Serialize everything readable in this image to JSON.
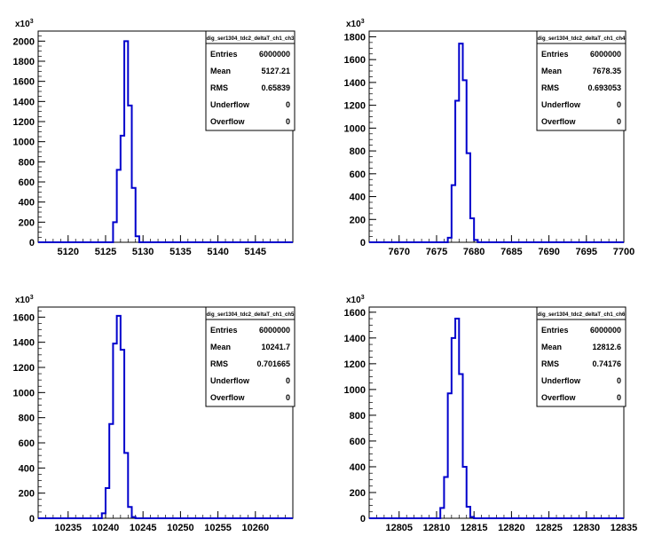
{
  "colors": {
    "histogram": "#0000cc",
    "axis": "#000000",
    "background": "#ffffff"
  },
  "chart_data": [
    {
      "type": "histogram",
      "title": "dig_ser1304_tdc2_deltaT_ch1_ch3",
      "y_exponent": {
        "base": "x10",
        "power": "3"
      },
      "xlim": [
        5116,
        5150
      ],
      "ylim": [
        0,
        2100
      ],
      "x_ticks": [
        5120,
        5125,
        5130,
        5135,
        5140,
        5145
      ],
      "y_ticks": [
        0,
        200,
        400,
        600,
        800,
        1000,
        1200,
        1400,
        1600,
        1800,
        2000
      ],
      "bin_width": 0.5,
      "bins_start": [
        5125.5,
        5126,
        5126.5,
        5127,
        5127.5,
        5128,
        5128.5,
        5129
      ],
      "values": [
        0,
        200,
        720,
        1060,
        2000,
        1360,
        540,
        60
      ],
      "stats": [
        {
          "label": "Entries",
          "value": "6000000"
        },
        {
          "label": "Mean",
          "value": "5127.21"
        },
        {
          "label": "RMS",
          "value": "0.65839"
        },
        {
          "label": "Underflow",
          "value": "0"
        },
        {
          "label": "Overflow",
          "value": "0"
        }
      ]
    },
    {
      "type": "histogram",
      "title": "dig_ser1304_tdc2_deltaT_ch1_ch4",
      "y_exponent": {
        "base": "x10",
        "power": "3"
      },
      "xlim": [
        7666,
        7700
      ],
      "ylim": [
        0,
        1850
      ],
      "x_ticks": [
        7670,
        7675,
        7680,
        7685,
        7690,
        7695,
        7700
      ],
      "y_ticks": [
        0,
        200,
        400,
        600,
        800,
        1000,
        1200,
        1400,
        1600,
        1800
      ],
      "bin_width": 0.5,
      "bins_start": [
        7676,
        7676.5,
        7677,
        7677.5,
        7678,
        7678.5,
        7679,
        7679.5,
        7680
      ],
      "values": [
        0,
        40,
        500,
        1240,
        1740,
        1420,
        780,
        210,
        20
      ],
      "stats": [
        {
          "label": "Entries",
          "value": "6000000"
        },
        {
          "label": "Mean",
          "value": "7678.35"
        },
        {
          "label": "RMS",
          "value": "0.693053"
        },
        {
          "label": "Underflow",
          "value": "0"
        },
        {
          "label": "Overflow",
          "value": "0"
        }
      ]
    },
    {
      "type": "histogram",
      "title": "dig_ser1304_tdc2_deltaT_ch1_ch5",
      "y_exponent": {
        "base": "x10",
        "power": "3"
      },
      "xlim": [
        10231,
        10265
      ],
      "ylim": [
        0,
        1680
      ],
      "x_ticks": [
        10235,
        10240,
        10245,
        10250,
        10255,
        10260
      ],
      "y_ticks": [
        0,
        200,
        400,
        600,
        800,
        1000,
        1200,
        1400,
        1600
      ],
      "bin_width": 0.5,
      "bins_start": [
        10239.5,
        10240,
        10240.5,
        10241,
        10241.5,
        10242,
        10242.5,
        10243,
        10243.5
      ],
      "values": [
        40,
        240,
        750,
        1390,
        1610,
        1340,
        520,
        90,
        10
      ],
      "stats": [
        {
          "label": "Entries",
          "value": "6000000"
        },
        {
          "label": "Mean",
          "value": "10241.7"
        },
        {
          "label": "RMS",
          "value": "0.701665"
        },
        {
          "label": "Underflow",
          "value": "0"
        },
        {
          "label": "Overflow",
          "value": "0"
        }
      ]
    },
    {
      "type": "histogram",
      "title": "dig_ser1304_tdc2_deltaT_ch1_ch6",
      "y_exponent": {
        "base": "x10",
        "power": "3"
      },
      "xlim": [
        12801,
        12835
      ],
      "ylim": [
        0,
        1640
      ],
      "x_ticks": [
        12805,
        12810,
        12815,
        12820,
        12825,
        12830,
        12835
      ],
      "y_ticks": [
        0,
        200,
        400,
        600,
        800,
        1000,
        1200,
        1400,
        1600
      ],
      "bin_width": 0.5,
      "bins_start": [
        12810.5,
        12811,
        12811.5,
        12812,
        12812.5,
        12813,
        12813.5,
        12814,
        12814.5
      ],
      "values": [
        80,
        320,
        970,
        1400,
        1550,
        1120,
        400,
        90,
        10
      ],
      "stats": [
        {
          "label": "Entries",
          "value": "6000000"
        },
        {
          "label": "Mean",
          "value": "12812.6"
        },
        {
          "label": "RMS",
          "value": "0.74176"
        },
        {
          "label": "Underflow",
          "value": "0"
        },
        {
          "label": "Overflow",
          "value": "0"
        }
      ]
    }
  ]
}
